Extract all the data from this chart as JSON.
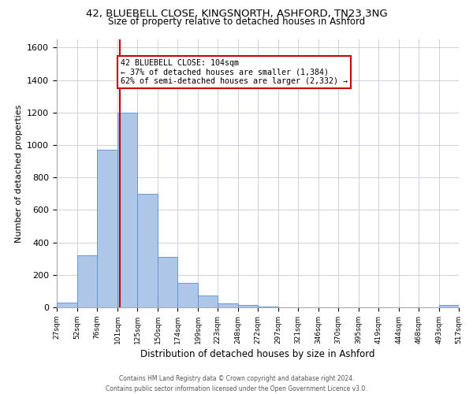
{
  "title1": "42, BLUEBELL CLOSE, KINGSNORTH, ASHFORD, TN23 3NG",
  "title2": "Size of property relative to detached houses in Ashford",
  "xlabel": "Distribution of detached houses by size in Ashford",
  "ylabel": "Number of detached properties",
  "annotation_line1": "42 BLUEBELL CLOSE: 104sqm",
  "annotation_line2": "← 37% of detached houses are smaller (1,384)",
  "annotation_line3": "62% of semi-detached houses are larger (2,332) →",
  "property_size": 104,
  "vline_color": "#cc0000",
  "bar_color": "#aec6e8",
  "bar_edge_color": "#5b8fc9",
  "annotation_box_edge": "#cc0000",
  "background_color": "#ffffff",
  "grid_color": "#d0d0d8",
  "footer_line1": "Contains HM Land Registry data © Crown copyright and database right 2024.",
  "footer_line2": "Contains public sector information licensed under the Open Government Licence v3.0.",
  "bin_edges": [
    27,
    52,
    76,
    101,
    125,
    150,
    174,
    199,
    223,
    248,
    272,
    297,
    321,
    346,
    370,
    395,
    419,
    444,
    468,
    493,
    517
  ],
  "bin_counts": [
    30,
    320,
    970,
    1200,
    700,
    310,
    150,
    75,
    25,
    15,
    5,
    2,
    2,
    2,
    0,
    0,
    0,
    0,
    0,
    15
  ],
  "ylim": [
    0,
    1650
  ],
  "yticks": [
    0,
    200,
    400,
    600,
    800,
    1000,
    1200,
    1400,
    1600
  ]
}
